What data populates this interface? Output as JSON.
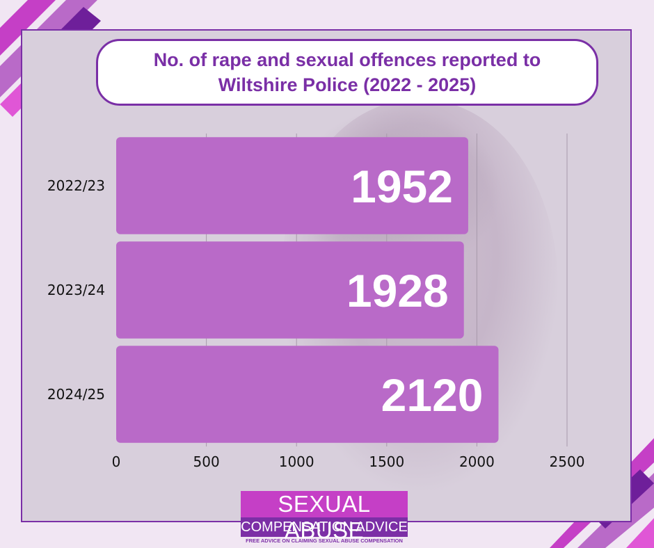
{
  "chart_data": {
    "type": "bar",
    "orientation": "horizontal",
    "title": "No. of rape and sexual offences reported to Wiltshire Police (2022 - 2025)",
    "categories": [
      "2022/23",
      "2023/24",
      "2024/25"
    ],
    "values": [
      1952,
      1928,
      2120
    ],
    "data_labels": [
      "1952",
      "1928",
      "2120"
    ],
    "xlim": [
      0,
      2500
    ],
    "x_ticks": [
      0,
      500,
      1000,
      1500,
      2000,
      2500
    ],
    "x_tick_labels": [
      "0",
      "500",
      "1000",
      "1500",
      "2000",
      "2500"
    ],
    "grid": "vertical",
    "legend": "none",
    "colors": {
      "bar": "#b96ac8",
      "grid": "#a89aab",
      "label": "#ffffff"
    }
  },
  "logo": {
    "line1": "SEXUAL ABUSE",
    "line2": "COMPENSATION ADVICE",
    "tagline": "FREE ADVICE ON CLAIMING SEXUAL ABUSE COMPENSATION"
  },
  "colors": {
    "accent": "#7a2fa6",
    "pink": "#c53fc6",
    "background": "#f1e6f3"
  }
}
